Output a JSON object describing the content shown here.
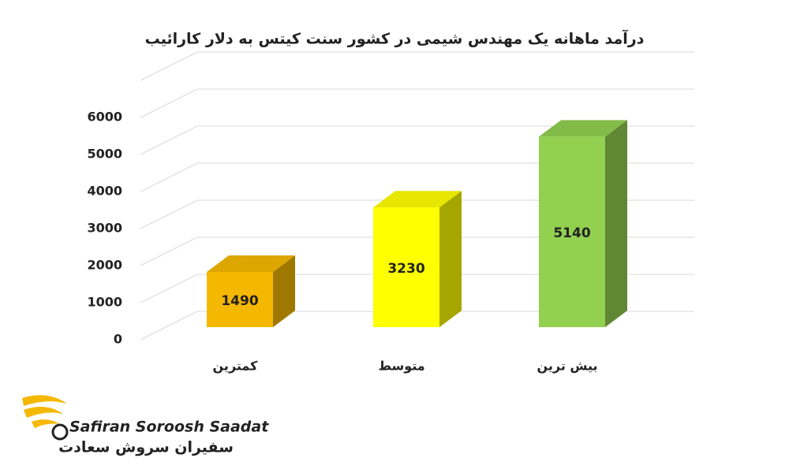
{
  "chart_data": {
    "type": "bar3d",
    "title": "درآمد ماهانه یک مهندس شیمی در کشور سنت کیتس به دلار کارائیب",
    "categories": [
      "کمترین",
      "متوسط",
      "بیش ترین"
    ],
    "values": [
      1490,
      3230,
      5140
    ],
    "colors": [
      "#f5b800",
      "#ffff00",
      "#92d050"
    ],
    "ylim": [
      0,
      7000
    ],
    "yticks": [
      0,
      1000,
      2000,
      3000,
      4000,
      5000,
      6000
    ],
    "grid": true
  },
  "logo": {
    "latin": "Safiran Soroosh Saadat",
    "persian": "سفیران سروش سعادت"
  }
}
